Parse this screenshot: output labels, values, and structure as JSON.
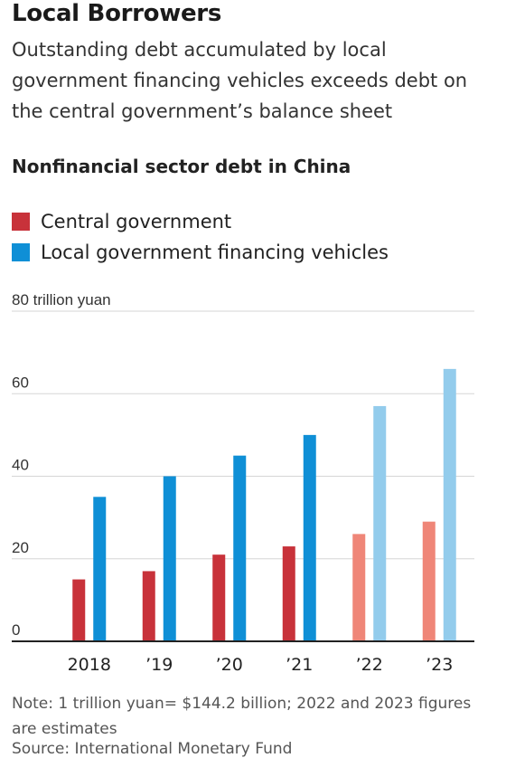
{
  "header": {
    "title": "Local Borrowers",
    "subtitle": "Outstanding debt accumulated by local government financing vehicles exceeds debt on the central government’s balance sheet"
  },
  "chart_data": {
    "type": "bar",
    "title": "Nonfinancial sector debt in China",
    "ylabel": "trillion yuan",
    "ylim": [
      0,
      80
    ],
    "yticks": [
      0,
      20,
      40,
      60,
      80
    ],
    "ytick_labels": [
      "0",
      "20",
      "40",
      "60",
      "80 trillion yuan"
    ],
    "grid": true,
    "legend_position": "top-left",
    "categories": [
      "2018",
      "’19",
      "’20",
      "’21",
      "’22",
      "’23"
    ],
    "estimated_from_index": 4,
    "series": [
      {
        "name": "Central government",
        "values": [
          15,
          17,
          21,
          23,
          26,
          29
        ],
        "color": "#c8323a",
        "estimate_color": "#ef8678"
      },
      {
        "name": "Local government financing vehicles",
        "values": [
          35,
          40,
          45,
          50,
          57,
          66
        ],
        "color": "#0f8fd6",
        "estimate_color": "#93ccec"
      }
    ]
  },
  "footer": {
    "note": "Note: 1 trillion yuan= $144.2 billion; 2022 and 2023 figures are estimates",
    "source": "Source: International Monetary Fund"
  }
}
